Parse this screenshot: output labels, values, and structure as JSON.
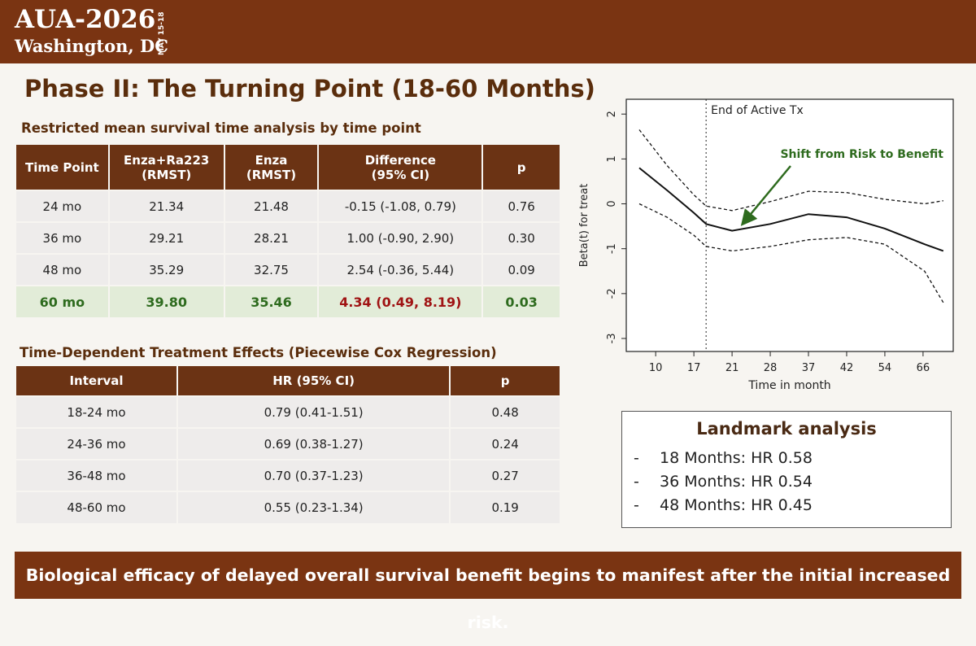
{
  "header": {
    "title": "AUA-2026",
    "location": "Washington, DC",
    "dates": "MAY 15-18"
  },
  "slide_title": "Phase II: The Turning Point (18-60 Months)",
  "rmst_table": {
    "title": "Restricted mean survival time analysis by time point",
    "columns": [
      "Time Point",
      "Enza+Ra223\n(RMST)",
      "Enza\n(RMST)",
      "Difference\n(95% CI)",
      "p"
    ],
    "rows": [
      [
        "24 mo",
        "21.34",
        "21.48",
        "-0.15 (-1.08, 0.79)",
        "0.76"
      ],
      [
        "36 mo",
        "29.21",
        "28.21",
        "1.00 (-0.90, 2.90)",
        "0.30"
      ],
      [
        "48 mo",
        "35.29",
        "32.75",
        "2.54 (-0.36, 5.44)",
        "0.09"
      ],
      [
        "60 mo",
        "39.80",
        "35.46",
        "4.34 (0.49, 8.19)",
        "0.03"
      ]
    ],
    "highlight_row": 3
  },
  "cox_table": {
    "title": "Time-Dependent Treatment Effects (Piecewise Cox Regression)",
    "columns": [
      "Interval",
      "HR (95% CI)",
      "p"
    ],
    "rows": [
      [
        "18-24 mo",
        "0.79 (0.41-1.51)",
        "0.48"
      ],
      [
        "24-36 mo",
        "0.69 (0.38-1.27)",
        "0.24"
      ],
      [
        "36-48 mo",
        "0.70 (0.37-1.23)",
        "0.27"
      ],
      [
        "48-60 mo",
        "0.55 (0.23-1.34)",
        "0.19"
      ]
    ]
  },
  "landmark": {
    "title": "Landmark analysis",
    "items": [
      "18 Months: HR 0.58",
      "36 Months: HR 0.54",
      "48 Months: HR 0.45"
    ]
  },
  "footer": "Biological efficacy of delayed overall survival benefit begins to manifest after the initial increased risk.",
  "chart_data": {
    "type": "line",
    "x_label": "Time in month",
    "y_label": "Beta(t) for treat",
    "x": [
      0.57,
      1.3,
      2.0,
      2.32,
      3.0,
      4.0,
      5.0,
      6.0,
      7.0,
      8.04,
      8.53
    ],
    "series": [
      {
        "name": "Beta(t)",
        "color": "#111111",
        "style": "solid",
        "values": [
          0.8,
          0.3,
          -0.2,
          -0.45,
          -0.6,
          -0.45,
          -0.23,
          -0.3,
          -0.55,
          -0.9,
          -1.05
        ]
      },
      {
        "name": "Upper CI",
        "color": "#111111",
        "style": "dashed",
        "values": [
          1.65,
          0.85,
          0.2,
          -0.05,
          -0.15,
          0.05,
          0.28,
          0.25,
          0.1,
          0.0,
          0.07
        ]
      },
      {
        "name": "Lower CI",
        "color": "#111111",
        "style": "dashed",
        "values": [
          0.0,
          -0.3,
          -0.7,
          -0.95,
          -1.05,
          -0.95,
          -0.8,
          -0.75,
          -0.9,
          -1.5,
          -2.2
        ]
      }
    ],
    "xlim": [
      0.23,
      8.79
    ],
    "ylim": [
      -3.29,
      2.33
    ],
    "xticks": [
      {
        "value": 1,
        "label": "10"
      },
      {
        "value": 2,
        "label": "17"
      },
      {
        "value": 3,
        "label": "21"
      },
      {
        "value": 4,
        "label": "28"
      },
      {
        "value": 5,
        "label": "37"
      },
      {
        "value": 6,
        "label": "42"
      },
      {
        "value": 7,
        "label": "54"
      },
      {
        "value": 8,
        "label": "66"
      }
    ],
    "yticks": [
      -3,
      -2,
      -1,
      0,
      1,
      2
    ],
    "vline": {
      "x": 2.32,
      "label": "End of Active Tx"
    },
    "annotation": {
      "text": "Shift from Risk to Benefit",
      "color": "#2e6b1e"
    }
  }
}
